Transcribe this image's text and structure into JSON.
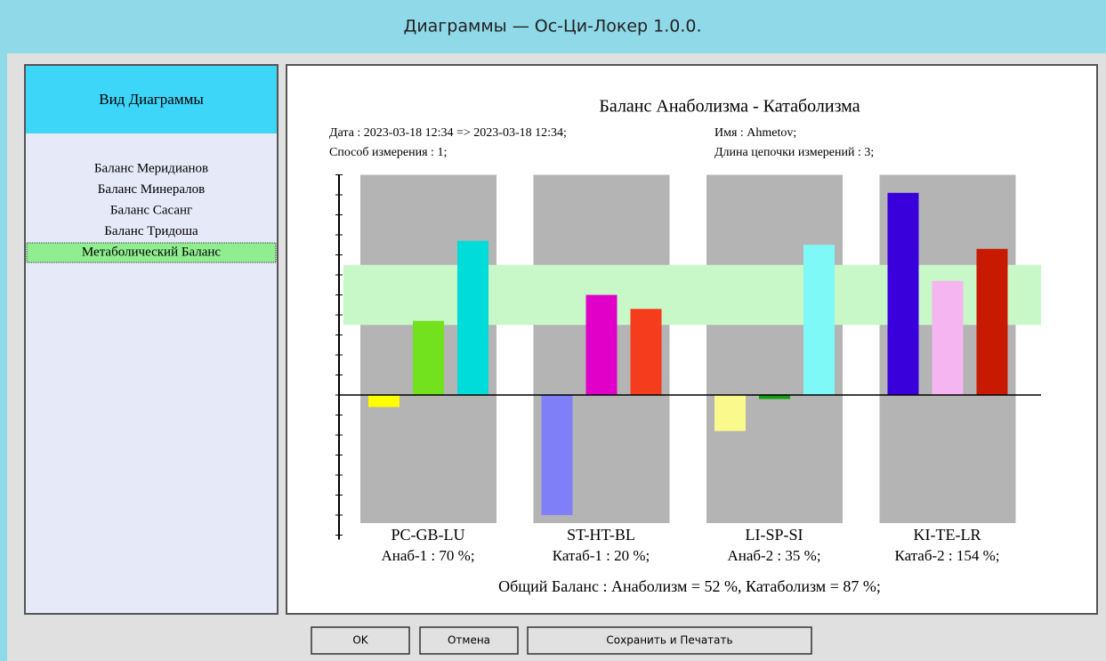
{
  "window": {
    "title": "Диаграммы — Ос-Ци-Локер 1.0.0."
  },
  "sidebar": {
    "header": "Вид Диаграммы",
    "items": [
      "Баланс Меридианов",
      "Баланс Минералов",
      "Баланс Сасанг",
      "Баланс Тридоша",
      "Метаболический Баланс"
    ],
    "selected": 4
  },
  "chart_data": {
    "type": "bar",
    "title": "Баланс Анаболизма - Катаболизма",
    "info": [
      "Дата :  2023-03-18 12:34 => 2023-03-18 12:34;",
      "Имя :  Ahmetov;",
      "Способ измерения :  1;",
      "Длина цепочки измерений :  3;"
    ],
    "groups": [
      {
        "name": "PC-GB-LU",
        "note": "Анаб-1 :  70 %;",
        "values": [
          -0.6,
          3.7,
          7.7
        ],
        "colors": [
          "#ffff00",
          "#72e21f",
          "#00dcd9"
        ]
      },
      {
        "name": "ST-HT-BL",
        "note": "Катаб-1 :  20 %;",
        "values": [
          -6.0,
          5.0,
          4.3
        ],
        "colors": [
          "#7f7ff7",
          "#e000c8",
          "#f53c1c"
        ]
      },
      {
        "name": "LI-SP-SI",
        "note": "Анаб-2 :  35 %;",
        "values": [
          -1.8,
          -0.2,
          7.5
        ],
        "colors": [
          "#fafa8c",
          "#10a010",
          "#7ff8f8"
        ]
      },
      {
        "name": "KI-TE-LR",
        "note": "Катаб-2 :  154 %;",
        "values": [
          10.1,
          5.7,
          7.3
        ],
        "colors": [
          "#3a00dc",
          "#f5b5f0",
          "#c81a00"
        ]
      }
    ],
    "ylim": [
      -7,
      11
    ],
    "yticks": [
      -7,
      -6,
      -5,
      -4,
      -3,
      -2,
      -1,
      0,
      1,
      2,
      3,
      4,
      5,
      6,
      7,
      8,
      9,
      10,
      11
    ],
    "band": [
      3.5,
      6.5
    ],
    "band_color": "#c8f8c8",
    "column_color": "#b4b4b4",
    "summary": "Общий Баланс :  Анаболизм = 52 %,  Катаболизм = 87 %;"
  },
  "buttons": [
    "OK",
    "Отмена",
    "Сохранить и Печатать"
  ]
}
